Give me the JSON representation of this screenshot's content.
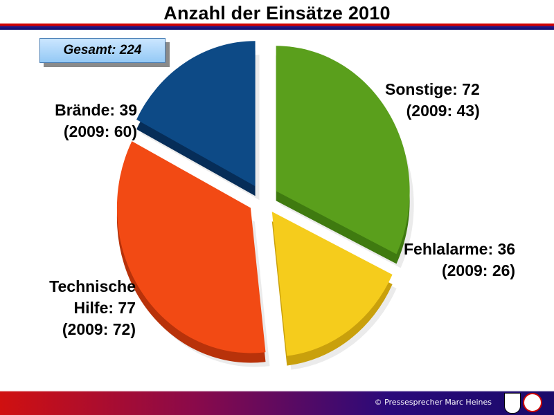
{
  "title": "Anzahl der Einsätze 2010",
  "total_label": "Gesamt: 224",
  "footer": {
    "credit": "© Pressesprecher Marc Heines"
  },
  "labels": {
    "sonstige": {
      "line1": "Sonstige: 72",
      "line2": "(2009: 43)"
    },
    "fehlalarme": {
      "line1": "Fehlalarme: 36",
      "line2": "(2009: 26)"
    },
    "technische": {
      "line1": "Technische",
      "line2": "Hilfe: 77",
      "line3": "(2009: 72)"
    },
    "braende": {
      "line1": "Brände: 39",
      "line2": "(2009: 60)"
    }
  },
  "chart_data": {
    "type": "pie",
    "title": "Anzahl der Einsätze 2010",
    "total": 224,
    "slices": [
      {
        "label": "Sonstige",
        "value": 72,
        "prev_year_value": 43,
        "color": "#5a9f1c",
        "side_color": "#3f7a10"
      },
      {
        "label": "Fehlalarme",
        "value": 36,
        "prev_year_value": 26,
        "color": "#f5cc1c",
        "side_color": "#c9a00c"
      },
      {
        "label": "Technische Hilfe",
        "value": 77,
        "prev_year_value": 72,
        "color": "#f24a14",
        "side_color": "#b8320a"
      },
      {
        "label": "Brände",
        "value": 39,
        "prev_year_value": 60,
        "color": "#0d4a86",
        "side_color": "#062d58"
      }
    ]
  }
}
